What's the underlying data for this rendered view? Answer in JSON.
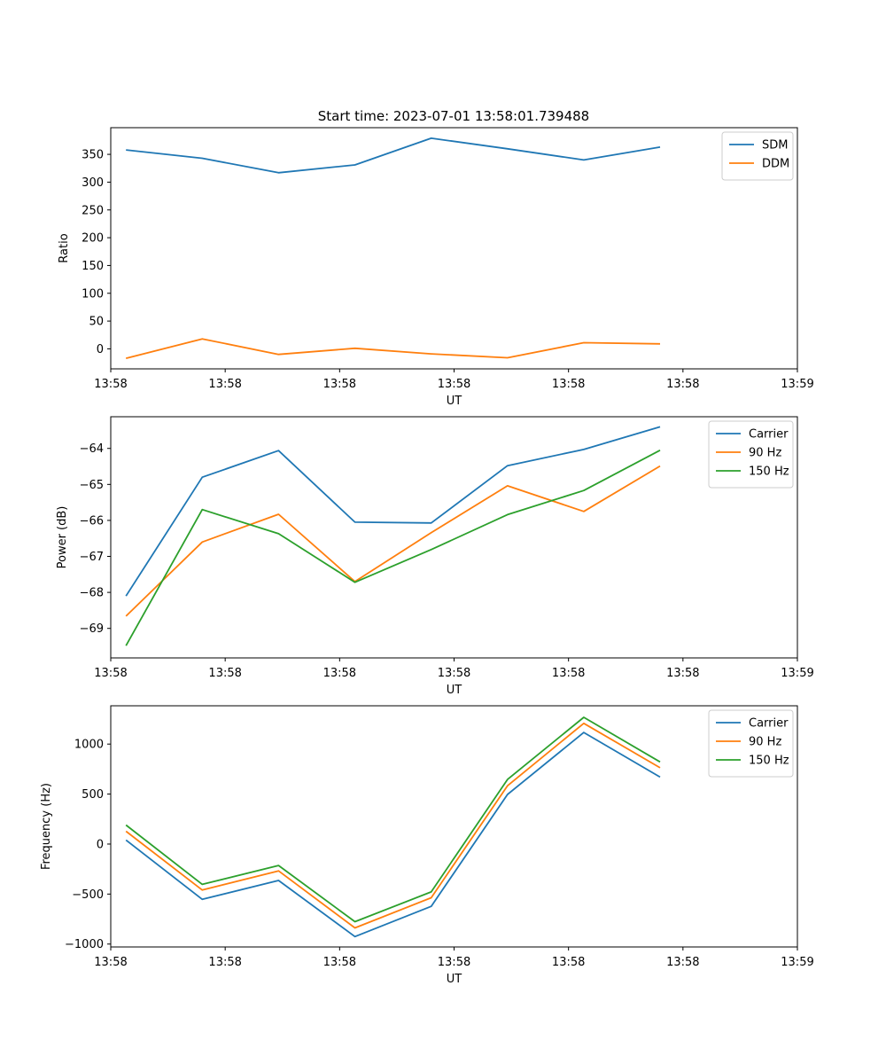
{
  "figure_title": "Start time: 2023-07-01 13:58:01.739488",
  "chart_data": [
    {
      "type": "line",
      "title": "Start time: 2023-07-01 13:58:01.739488",
      "xlabel": "UT",
      "ylabel": "Ratio",
      "x": [
        1,
        2,
        3,
        4,
        5,
        6,
        7,
        8
      ],
      "xlim": [
        0.8,
        9.8
      ],
      "ylim": [
        -36,
        398
      ],
      "yticks": [
        0,
        50,
        100,
        150,
        200,
        250,
        300,
        350
      ],
      "xticks": [
        0.8,
        2.3,
        3.8,
        5.3,
        6.8,
        8.3,
        9.8
      ],
      "xtick_labels": [
        "13:58",
        "13:58",
        "13:58",
        "13:58",
        "13:58",
        "13:58",
        "13:59"
      ],
      "legend_position": "top-right",
      "series": [
        {
          "name": "SDM",
          "color": "#1f77b4",
          "values": [
            358,
            343,
            317,
            331,
            379,
            360,
            340,
            363
          ]
        },
        {
          "name": "DDM",
          "color": "#ff7f0e",
          "values": [
            -17,
            18,
            -10,
            1,
            -9,
            -16,
            11,
            9
          ]
        }
      ]
    },
    {
      "type": "line",
      "title": "",
      "xlabel": "UT",
      "ylabel": "Power (dB)",
      "x": [
        1,
        2,
        3,
        4,
        5,
        6,
        7,
        8
      ],
      "xlim": [
        0.8,
        9.8
      ],
      "ylim": [
        -69.82,
        -63.12
      ],
      "yticks": [
        -69,
        -68,
        -67,
        -66,
        -65,
        -64
      ],
      "xticks": [
        0.8,
        2.3,
        3.8,
        5.3,
        6.8,
        8.3,
        9.8
      ],
      "xtick_labels": [
        "13:58",
        "13:58",
        "13:58",
        "13:58",
        "13:58",
        "13:58",
        "13:59"
      ],
      "legend_position": "top-right",
      "series": [
        {
          "name": "Carrier",
          "color": "#1f77b4",
          "values": [
            -68.1,
            -64.8,
            -64.06,
            -66.05,
            -66.07,
            -64.48,
            -64.03,
            -63.4
          ]
        },
        {
          "name": "90 Hz",
          "color": "#ff7f0e",
          "values": [
            -68.66,
            -66.6,
            -65.83,
            -67.7,
            -66.34,
            -65.04,
            -65.75,
            -64.49
          ]
        },
        {
          "name": "150 Hz",
          "color": "#2ca02c",
          "values": [
            -69.48,
            -65.7,
            -66.37,
            -67.72,
            -66.81,
            -65.84,
            -65.17,
            -64.05
          ]
        }
      ]
    },
    {
      "type": "line",
      "title": "",
      "xlabel": "UT",
      "ylabel": "Frequency (Hz)",
      "x": [
        1,
        2,
        3,
        4,
        5,
        6,
        7,
        8
      ],
      "xlim": [
        0.8,
        9.8
      ],
      "ylim": [
        -1029,
        1383
      ],
      "yticks": [
        -1000,
        -500,
        0,
        500,
        1000
      ],
      "xticks": [
        0.8,
        2.3,
        3.8,
        5.3,
        6.8,
        8.3,
        9.8
      ],
      "xtick_labels": [
        "13:58",
        "13:58",
        "13:58",
        "13:58",
        "13:58",
        "13:58",
        "13:59"
      ],
      "legend_position": "top-right",
      "series": [
        {
          "name": "Carrier",
          "color": "#1f77b4",
          "values": [
            40,
            -553,
            -364,
            -925,
            -623,
            496,
            1116,
            670
          ]
        },
        {
          "name": "90 Hz",
          "color": "#ff7f0e",
          "values": [
            128,
            -460,
            -268,
            -838,
            -537,
            583,
            1207,
            763
          ]
        },
        {
          "name": "150 Hz",
          "color": "#2ca02c",
          "values": [
            190,
            -403,
            -214,
            -776,
            -478,
            646,
            1268,
            822
          ]
        }
      ]
    }
  ]
}
